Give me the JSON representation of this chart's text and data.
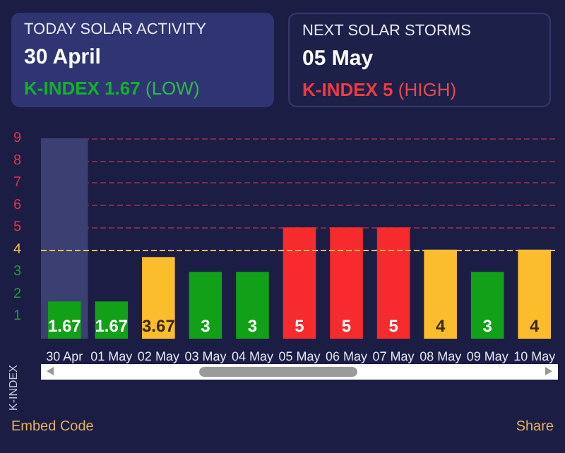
{
  "chart_data": {
    "type": "bar",
    "ylabel": "K-INDEX",
    "annotations": [
      "TODAY SOLAR ACTIVITY",
      "30 April",
      "K-INDEX 1.67",
      "(LOW)",
      "NEXT SOLAR STORMS",
      "05 May",
      "K-INDEX 5",
      "(HIGH)",
      "Embed Code",
      "Share"
    ],
    "categories": [
      "30 Apr",
      "01 May",
      "02 May",
      "03 May",
      "04 May",
      "05 May",
      "06 May",
      "07 May",
      "08 May",
      "09 May",
      "10 May"
    ],
    "values": [
      1.67,
      1.67,
      3.67,
      3,
      3,
      5,
      5,
      5,
      4,
      3,
      4
    ],
    "colors": [
      "#12a018",
      "#12a018",
      "#fbbd2c",
      "#12a018",
      "#12a018",
      "#f72a2e",
      "#f72a2e",
      "#f72a2e",
      "#fbbd2c",
      "#12a018",
      "#fbbd2c"
    ],
    "ylim": [
      0,
      9
    ],
    "yticks": [
      1,
      2,
      3,
      4,
      5,
      6,
      7,
      8,
      9
    ],
    "grid": "y",
    "data_labels": true,
    "ref_lines": [
      {
        "axis": "y",
        "value": 4,
        "color": "#e6be5a",
        "line_style": "dashed"
      }
    ],
    "bands": [
      {
        "axis": "x",
        "from": "30 Apr",
        "to": "30 Apr",
        "color": "#3b3f72"
      }
    ]
  }
}
